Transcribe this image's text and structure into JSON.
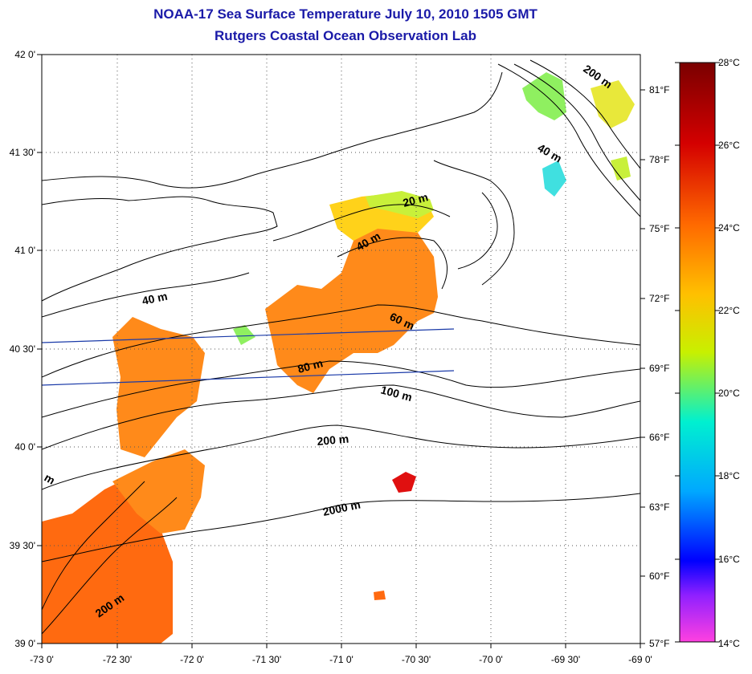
{
  "title": "NOAA-17 Sea Surface Temperature July 10, 2010 1505 GMT",
  "subtitle": "Rutgers Coastal Ocean Observation Lab",
  "axes": {
    "lat_ticks": [
      "42 0'",
      "41 30'",
      "41 0'",
      "40 30'",
      "40 0'",
      "39 30'",
      "39 0'"
    ],
    "lon_ticks": [
      "-73 0'",
      "-72 30'",
      "-72 0'",
      "-71 30'",
      "-71 0'",
      "-70 30'",
      "-70 0'",
      "-69 30'",
      "-69 0'"
    ]
  },
  "colorbar": {
    "celsius": [
      "28°C",
      "26°C",
      "24°C",
      "22°C",
      "20°C",
      "18°C",
      "16°C",
      "14°C"
    ],
    "fahrenheit": [
      "81°F",
      "78°F",
      "75°F",
      "72°F",
      "69°F",
      "66°F",
      "63°F",
      "60°F",
      "57°F"
    ],
    "colors": [
      "#7a0000",
      "#d40000",
      "#ff6a00",
      "#ffc000",
      "#c8f000",
      "#00f0d0",
      "#00a8ff",
      "#0000ff",
      "#9020ff",
      "#ff40e0"
    ]
  },
  "depth_labels": {
    "d20": "20 m",
    "d40a": "40 m",
    "d40b": "40 m",
    "d40c": "40 m",
    "d60": "60 m",
    "d80": "80 m",
    "d100": "100 m",
    "d200a": "200 m",
    "d200b": "200 m",
    "d200c": "200 m",
    "d200d": "200 m",
    "d2000": "2000 m",
    "dedge": "m"
  },
  "colors": {
    "title": "#1a1aa8",
    "sst_warm": "#ff6a10",
    "sst_orange": "#ff8a1a",
    "sst_yellow": "#ffd21a",
    "sst_lime": "#c8f03a",
    "sst_green": "#8ff060",
    "sst_cyan": "#40e0e0",
    "sst_red": "#e01010"
  }
}
